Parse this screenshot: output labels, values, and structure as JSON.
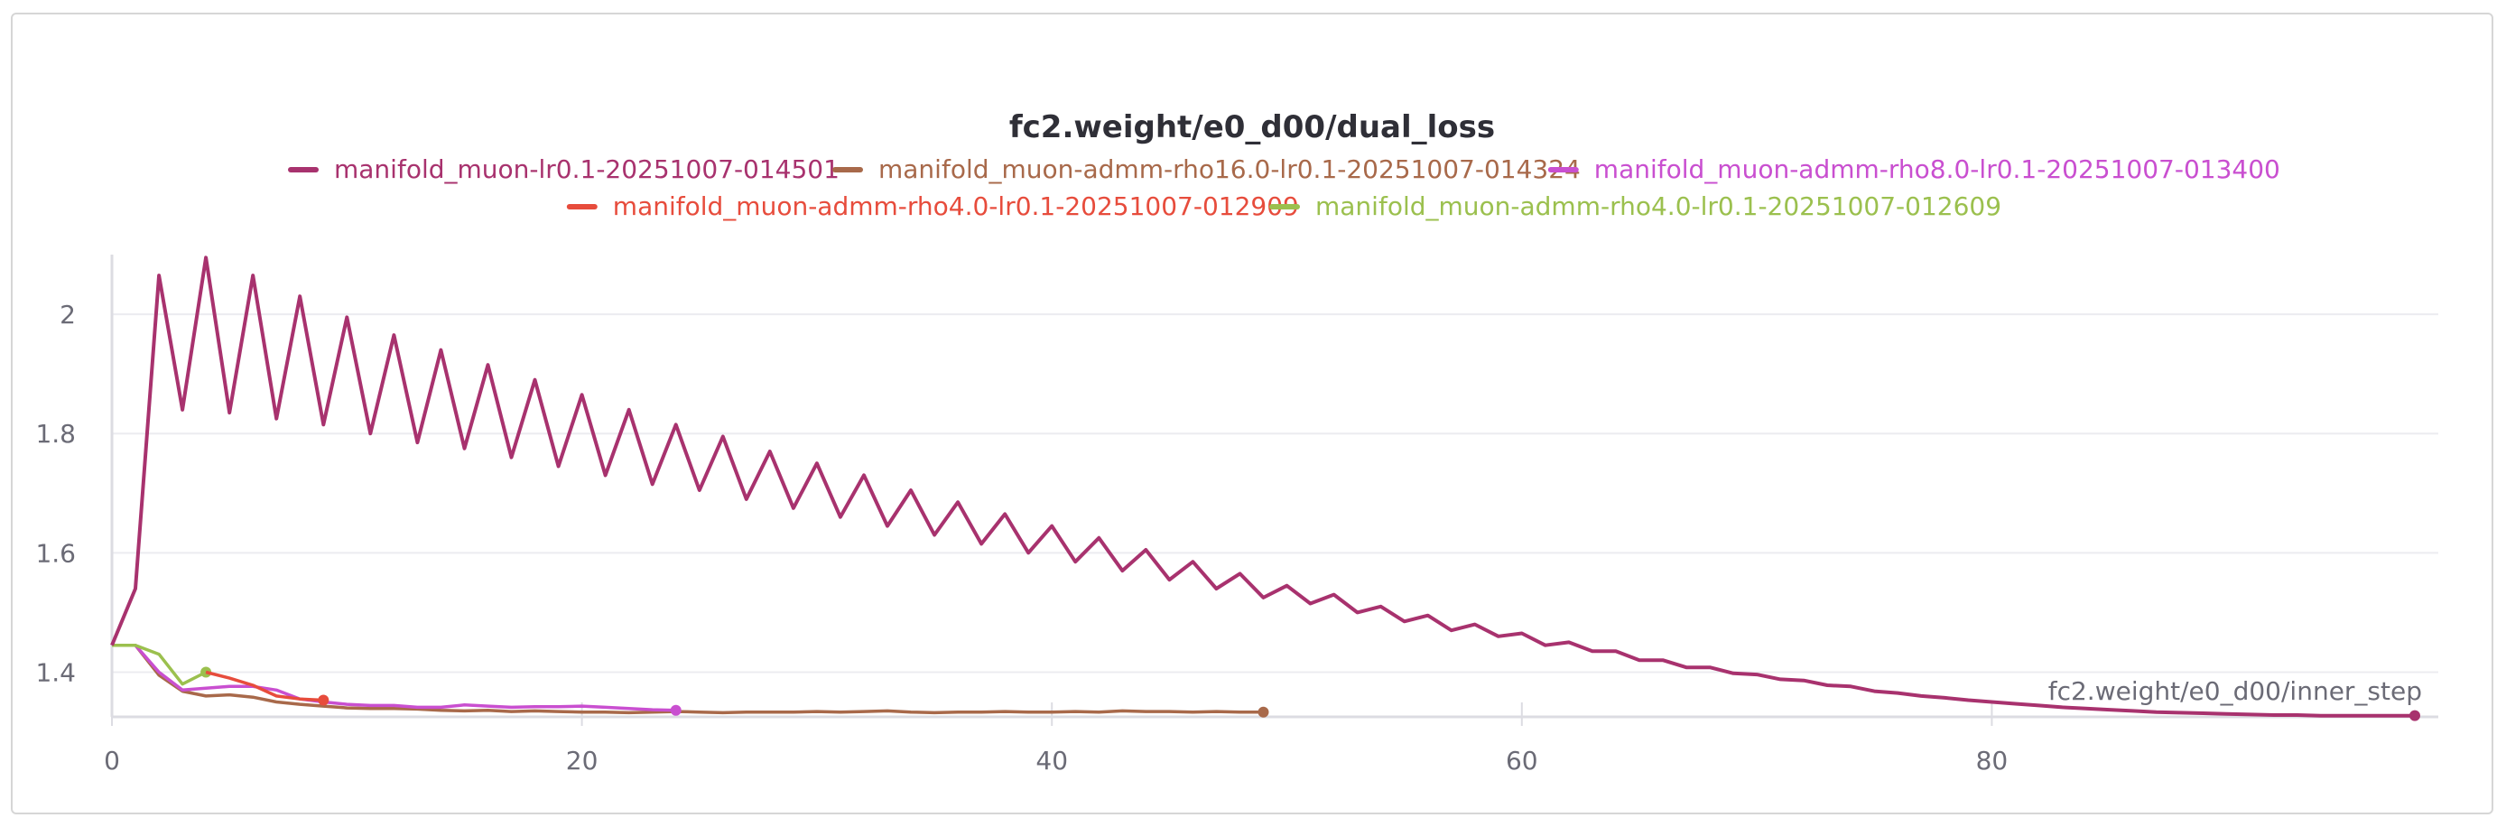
{
  "chart_data": {
    "type": "line",
    "title": "fc2.weight/e0_d00/dual_loss",
    "xlabel": "fc2.weight/e0_d00/inner_step",
    "ylabel": "",
    "xlim": [
      0,
      99
    ],
    "ylim": [
      1.325,
      2.1
    ],
    "xticks": [
      0,
      20,
      40,
      60,
      80
    ],
    "yticks": [
      1.4,
      1.6,
      1.8,
      2
    ],
    "grid": true,
    "legend_position": "top",
    "series": [
      {
        "name": "manifold_muon-lr0.1-20251007-014501",
        "color": "#a8326e",
        "x": [
          0,
          1,
          2,
          3,
          4,
          5,
          6,
          7,
          8,
          9,
          10,
          11,
          12,
          13,
          14,
          15,
          16,
          17,
          18,
          19,
          20,
          21,
          22,
          23,
          24,
          25,
          26,
          27,
          28,
          29,
          30,
          31,
          32,
          33,
          34,
          35,
          36,
          37,
          38,
          39,
          40,
          41,
          42,
          43,
          44,
          45,
          46,
          47,
          48,
          49,
          50,
          51,
          52,
          53,
          54,
          55,
          56,
          57,
          58,
          59,
          60,
          61,
          62,
          63,
          64,
          65,
          66,
          67,
          68,
          69,
          70,
          71,
          72,
          73,
          74,
          75,
          76,
          77,
          78,
          79,
          80,
          81,
          82,
          83,
          84,
          85,
          86,
          87,
          88,
          89,
          90,
          91,
          92,
          93,
          94,
          95,
          96,
          97,
          98
        ],
        "y": [
          1.445,
          1.54,
          2.065,
          1.84,
          2.095,
          1.835,
          2.065,
          1.825,
          2.03,
          1.815,
          1.995,
          1.8,
          1.965,
          1.785,
          1.94,
          1.775,
          1.915,
          1.76,
          1.89,
          1.745,
          1.865,
          1.73,
          1.84,
          1.715,
          1.815,
          1.705,
          1.795,
          1.69,
          1.77,
          1.675,
          1.75,
          1.66,
          1.73,
          1.645,
          1.705,
          1.63,
          1.685,
          1.615,
          1.665,
          1.6,
          1.645,
          1.585,
          1.625,
          1.57,
          1.605,
          1.555,
          1.585,
          1.54,
          1.565,
          1.525,
          1.545,
          1.515,
          1.53,
          1.5,
          1.51,
          1.485,
          1.495,
          1.47,
          1.48,
          1.46,
          1.465,
          1.445,
          1.45,
          1.435,
          1.435,
          1.42,
          1.42,
          1.408,
          1.408,
          1.398,
          1.396,
          1.388,
          1.386,
          1.378,
          1.376,
          1.368,
          1.365,
          1.36,
          1.357,
          1.353,
          1.35,
          1.347,
          1.344,
          1.341,
          1.339,
          1.337,
          1.335,
          1.333,
          1.332,
          1.331,
          1.33,
          1.329,
          1.328,
          1.328,
          1.327,
          1.327,
          1.327,
          1.327,
          1.327
        ]
      },
      {
        "name": "manifold_muon-admm-rho16.0-lr0.1-20251007-014324",
        "color": "#a8694a",
        "x": [
          0,
          1,
          2,
          3,
          4,
          5,
          6,
          7,
          8,
          9,
          10,
          11,
          12,
          13,
          14,
          15,
          16,
          17,
          18,
          19,
          20,
          21,
          22,
          23,
          24,
          25,
          26,
          27,
          28,
          29,
          30,
          31,
          32,
          33,
          34,
          35,
          36,
          37,
          38,
          39,
          40,
          41,
          42,
          43,
          44,
          45,
          46,
          47,
          48,
          49
        ],
        "y": [
          1.445,
          1.445,
          1.395,
          1.368,
          1.36,
          1.362,
          1.358,
          1.35,
          1.346,
          1.343,
          1.34,
          1.339,
          1.339,
          1.338,
          1.336,
          1.335,
          1.336,
          1.334,
          1.335,
          1.334,
          1.333,
          1.333,
          1.332,
          1.333,
          1.334,
          1.333,
          1.332,
          1.333,
          1.333,
          1.333,
          1.334,
          1.333,
          1.334,
          1.335,
          1.333,
          1.332,
          1.333,
          1.333,
          1.334,
          1.333,
          1.333,
          1.334,
          1.333,
          1.335,
          1.334,
          1.334,
          1.333,
          1.334,
          1.333,
          1.333
        ]
      },
      {
        "name": "manifold_muon-admm-rho8.0-lr0.1-20251007-013400",
        "color": "#c94fd0",
        "x": [
          0,
          1,
          2,
          3,
          4,
          5,
          6,
          7,
          8,
          9,
          10,
          11,
          12,
          13,
          14,
          15,
          16,
          17,
          18,
          19,
          20,
          21,
          22,
          23,
          24
        ],
        "y": [
          1.445,
          1.445,
          1.4,
          1.37,
          1.373,
          1.376,
          1.376,
          1.37,
          1.355,
          1.35,
          1.346,
          1.344,
          1.344,
          1.341,
          1.341,
          1.345,
          1.343,
          1.341,
          1.342,
          1.342,
          1.343,
          1.341,
          1.339,
          1.337,
          1.336
        ]
      },
      {
        "name": "manifold_muon-admm-rho4.0-lr0.1-20251007-012909",
        "color": "#e74c3c",
        "x": [
          4,
          5,
          6,
          7,
          8,
          9
        ],
        "y": [
          1.4,
          1.39,
          1.378,
          1.36,
          1.355,
          1.353
        ]
      },
      {
        "name": "manifold_muon-admm-rho4.0-lr0.1-20251007-012609",
        "color": "#9bc04e",
        "x": [
          0,
          1,
          2,
          3,
          4
        ],
        "y": [
          1.445,
          1.445,
          1.43,
          1.38,
          1.4
        ]
      }
    ]
  }
}
